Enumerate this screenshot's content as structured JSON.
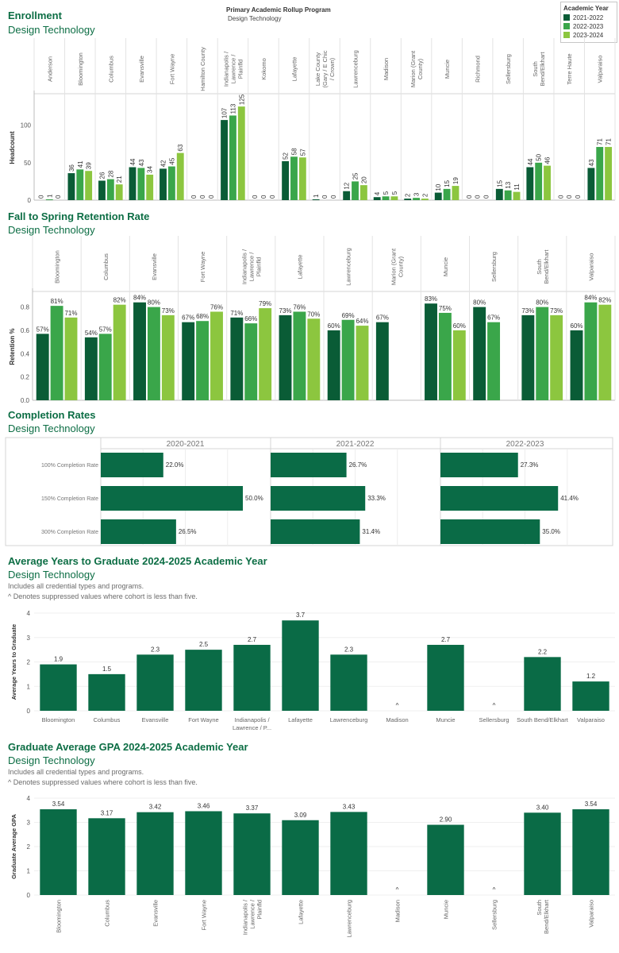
{
  "header": {
    "program_label": "Primary Academic Rollup Program",
    "program_value": "Design Technology",
    "legend_title": "Academic Year",
    "legend_items": [
      {
        "label": "2021-2022",
        "color": "#0a5c36"
      },
      {
        "label": "2022-2023",
        "color": "#3aa64a"
      },
      {
        "label": "2023-2024",
        "color": "#8cc63f"
      }
    ]
  },
  "sections": {
    "enrollment": {
      "title": "Enrollment",
      "subtitle": "Design Technology"
    },
    "retention": {
      "title": "Fall to Spring Retention Rate",
      "subtitle": "Design Technology"
    },
    "completion": {
      "title": "Completion Rates",
      "subtitle": "Design Technology"
    },
    "years": {
      "title": "Average Years to Graduate 2024-2025 Academic Year",
      "subtitle": "Design Technology",
      "note1": "Includes all credential types and programs.",
      "note2": "^ Denotes suppressed values where cohort is less than five."
    },
    "gpa": {
      "title": "Graduate Average GPA 2024-2025 Academic Year",
      "subtitle": "Design Technology",
      "note1": "Includes all credential types and programs.",
      "note2": "^ Denotes suppressed values where cohort is less than five."
    }
  },
  "chart_data": [
    {
      "id": "enrollment",
      "type": "bar",
      "ylabel": "Headcount",
      "ylim": [
        0,
        140
      ],
      "yticks": [
        0,
        50,
        100
      ],
      "categories": [
        "Anderson",
        "Bloomington",
        "Columbus",
        "Evansville",
        "Fort Wayne",
        "Hamilton County",
        "Indianapolis / Lawrence / Plainfld",
        "Kokomo",
        "Lafayette",
        "Lake County (Gary / E Chic / Crown)",
        "Lawrenceburg",
        "Madison",
        "Marion (Grant County)",
        "Muncie",
        "Richmond",
        "Sellersburg",
        "South Bend/Elkhart",
        "Terre Haute",
        "Valparaiso"
      ],
      "series": [
        {
          "name": "2021-2022",
          "values": [
            0,
            36,
            26,
            44,
            42,
            0,
            107,
            0,
            52,
            1,
            12,
            4,
            2,
            10,
            0,
            15,
            44,
            0,
            43
          ]
        },
        {
          "name": "2022-2023",
          "values": [
            1,
            41,
            28,
            43,
            45,
            0,
            113,
            0,
            58,
            0,
            25,
            5,
            3,
            15,
            0,
            13,
            50,
            0,
            71
          ]
        },
        {
          "name": "2023-2024",
          "values": [
            0,
            39,
            21,
            34,
            63,
            0,
            125,
            0,
            57,
            0,
            20,
            5,
            2,
            19,
            0,
            11,
            46,
            0,
            71
          ]
        }
      ]
    },
    {
      "id": "retention",
      "type": "bar",
      "ylabel": "Retention %",
      "ylim": [
        0,
        0.92
      ],
      "yticks": [
        0.0,
        0.2,
        0.4,
        0.6,
        0.8
      ],
      "categories": [
        "Bloomington",
        "Columbus",
        "Evansville",
        "Fort Wayne",
        "Indianapolis / Lawrence / Plainfld",
        "Lafayette",
        "Lawrenceburg",
        "Marion (Grant County)",
        "Muncie",
        "Sellersburg",
        "South Bend/Elkhart",
        "Valparaiso"
      ],
      "series": [
        {
          "name": "2021-2022",
          "values": [
            0.57,
            0.54,
            0.84,
            0.67,
            0.71,
            0.73,
            0.6,
            0.67,
            0.83,
            0.8,
            0.73,
            0.6
          ]
        },
        {
          "name": "2022-2023",
          "values": [
            0.81,
            0.57,
            0.8,
            0.68,
            0.66,
            0.76,
            0.69,
            null,
            0.75,
            0.67,
            0.8,
            0.84
          ]
        },
        {
          "name": "2023-2024",
          "values": [
            0.71,
            0.82,
            0.73,
            0.76,
            0.79,
            0.7,
            0.64,
            null,
            0.6,
            null,
            0.73,
            0.82
          ]
        }
      ]
    },
    {
      "id": "completion",
      "type": "bar",
      "orientation": "horizontal",
      "categories": [
        "100% Completion Rate",
        "150% Completion Rate",
        "300% Completion Rate"
      ],
      "panels": [
        {
          "name": "2020-2021",
          "values": [
            22.0,
            50.0,
            26.5
          ]
        },
        {
          "name": "2021-2022",
          "values": [
            26.7,
            33.3,
            31.4
          ]
        },
        {
          "name": "2022-2023",
          "values": [
            27.3,
            41.4,
            35.0
          ]
        }
      ]
    },
    {
      "id": "years",
      "type": "bar",
      "ylabel": "Average Years to Graduate",
      "ylim": [
        0,
        4
      ],
      "yticks": [
        0,
        1,
        2,
        3,
        4
      ],
      "categories": [
        "Bloomington",
        "Columbus",
        "Evansville",
        "Fort Wayne",
        "Indianapolis / Lawrence / P...",
        "Lafayette",
        "Lawrenceburg",
        "Madison",
        "Muncie",
        "Sellersburg",
        "South Bend/Elkhart",
        "Valparaiso"
      ],
      "values": [
        1.9,
        1.5,
        2.3,
        2.5,
        2.7,
        3.7,
        2.3,
        null,
        2.7,
        null,
        2.2,
        1.2
      ],
      "labels": [
        "1.9",
        "1.5",
        "2.3",
        "2.5",
        "2.7",
        "3.7",
        "2.3",
        "^",
        "2.7",
        "^",
        "2.2",
        "1.2"
      ]
    },
    {
      "id": "gpa",
      "type": "bar",
      "ylabel": "Graduate Average GPA",
      "ylim": [
        0,
        4
      ],
      "yticks": [
        0,
        1,
        2,
        3,
        4
      ],
      "categories": [
        "Bloomington",
        "Columbus",
        "Evansville",
        "Fort Wayne",
        "Indianapolis / Lawrence / Plainfld",
        "Lafayette",
        "Lawrenceburg",
        "Madison",
        "Muncie",
        "Sellersburg",
        "South Bend/Elkhart",
        "Valparaiso"
      ],
      "values": [
        3.54,
        3.17,
        3.42,
        3.46,
        3.37,
        3.09,
        3.43,
        null,
        2.9,
        null,
        3.4,
        3.54
      ],
      "labels": [
        "3.54",
        "3.17",
        "3.42",
        "3.46",
        "3.37",
        "3.09",
        "3.43",
        "^",
        "2.90",
        "^",
        "3.40",
        "3.54"
      ]
    }
  ]
}
